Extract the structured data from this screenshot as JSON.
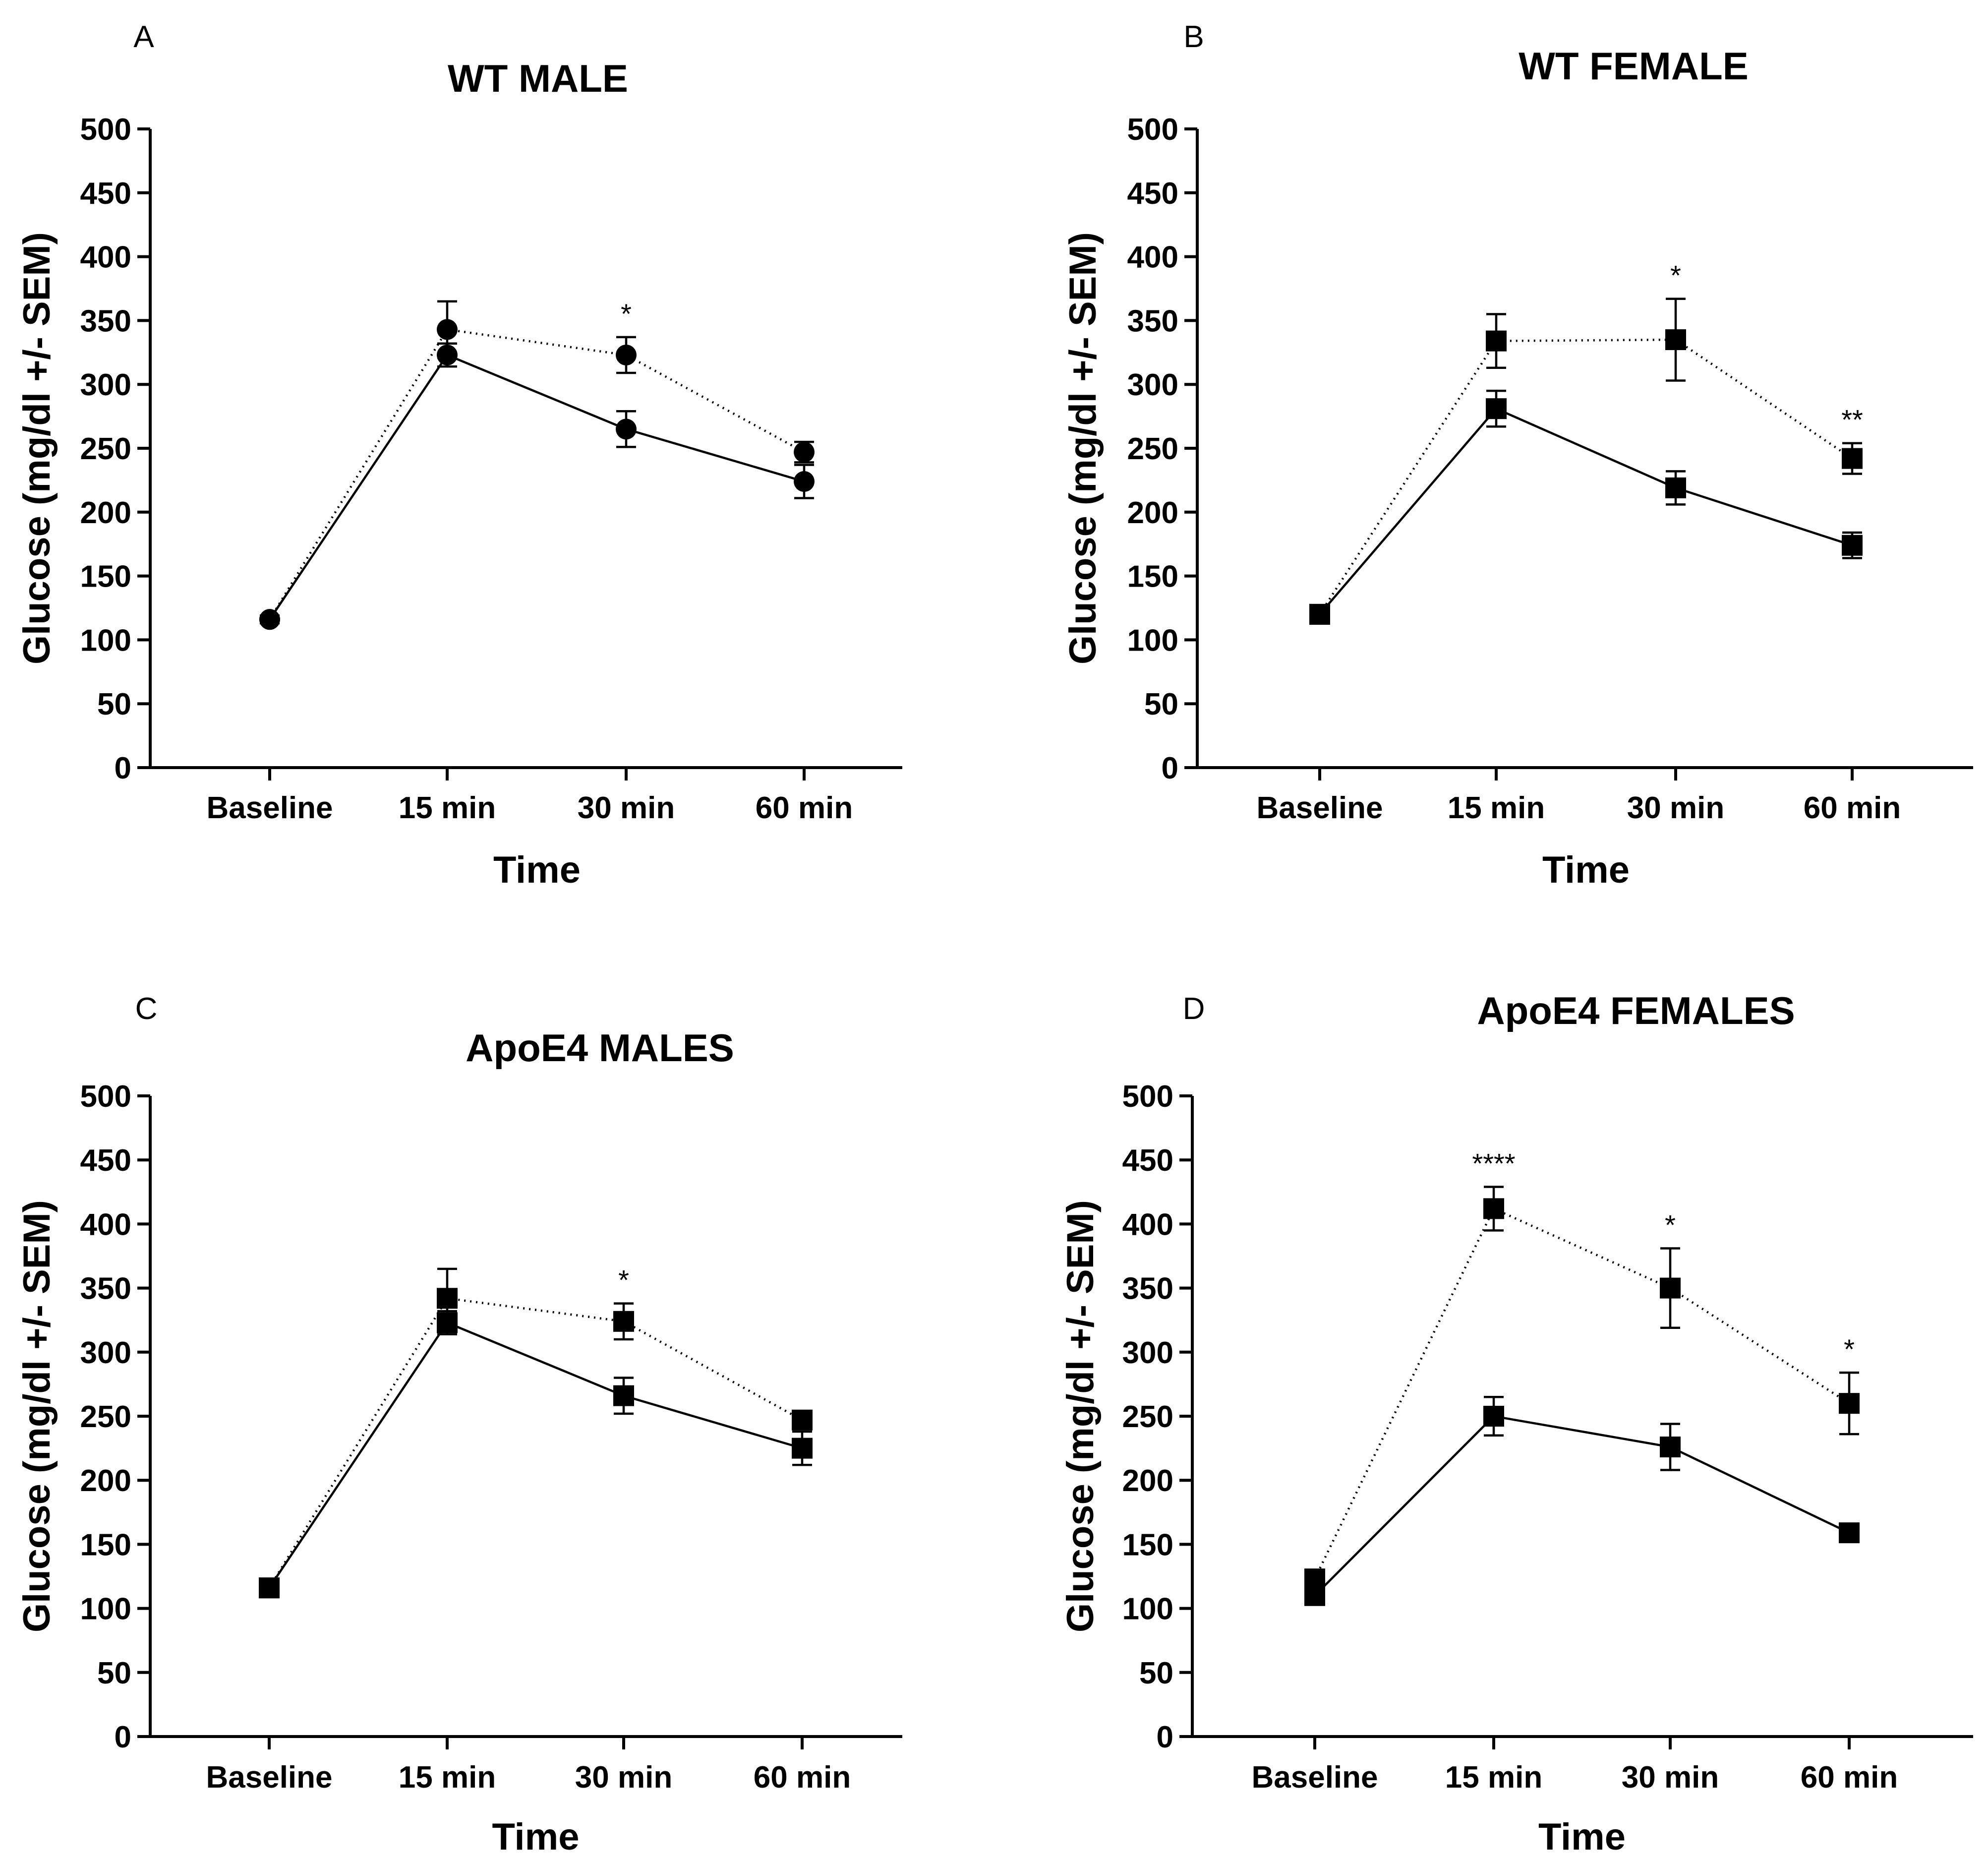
{
  "colors": {
    "ink": "#000000",
    "background": "#ffffff"
  },
  "chart_data": [
    {
      "type": "line",
      "panel": "A",
      "title": "WT MALE",
      "xlabel": "Time",
      "ylabel": "Glucose (mg/dl +/- SEM)",
      "ylim": [
        0,
        500
      ],
      "yticks": [
        "0",
        "50",
        "100",
        "150",
        "200",
        "250",
        "300",
        "350",
        "400",
        "450",
        "500"
      ],
      "categories": [
        "Baseline",
        "15 min",
        "30 min",
        "60 min"
      ],
      "marker": "circle",
      "series": [
        {
          "line": "solid",
          "values": [
            116,
            323,
            265,
            224
          ],
          "sem": [
            3,
            9,
            14,
            13
          ]
        },
        {
          "line": "dotted",
          "values": [
            116,
            343,
            323,
            247
          ],
          "sem": [
            3,
            22,
            14,
            8
          ]
        }
      ],
      "annotations": [
        {
          "category": "30 min",
          "text": "*"
        }
      ]
    },
    {
      "type": "line",
      "panel": "B",
      "title": "WT FEMALE",
      "xlabel": "Time",
      "ylabel": "Glucose (mg/dl +/- SEM)",
      "ylim": [
        0,
        500
      ],
      "yticks": [
        "0",
        "50",
        "100",
        "150",
        "200",
        "250",
        "300",
        "350",
        "400",
        "450",
        "500"
      ],
      "categories": [
        "Baseline",
        "15 min",
        "30 min",
        "60 min"
      ],
      "marker": "square",
      "series": [
        {
          "line": "solid",
          "values": [
            120,
            281,
            219,
            174
          ],
          "sem": [
            5,
            14,
            13,
            10
          ]
        },
        {
          "line": "dotted",
          "values": [
            120,
            334,
            335,
            242
          ],
          "sem": [
            5,
            21,
            32,
            12
          ]
        }
      ],
      "annotations": [
        {
          "category": "30 min",
          "text": "*"
        },
        {
          "category": "60 min",
          "text": "**"
        }
      ]
    },
    {
      "type": "line",
      "panel": "C",
      "title": "ApoE4 MALES",
      "xlabel": "Time",
      "ylabel": "Glucose (mg/dl +/- SEM)",
      "ylim": [
        0,
        500
      ],
      "yticks": [
        "0",
        "50",
        "100",
        "150",
        "200",
        "250",
        "300",
        "350",
        "400",
        "450",
        "500"
      ],
      "categories": [
        "Baseline",
        "15 min",
        "30 min",
        "60 min"
      ],
      "marker": "square",
      "series": [
        {
          "line": "solid",
          "values": [
            116,
            323,
            266,
            225
          ],
          "sem": [
            3,
            9,
            14,
            13
          ]
        },
        {
          "line": "dotted",
          "values": [
            116,
            342,
            324,
            247
          ],
          "sem": [
            3,
            23,
            14,
            7
          ]
        }
      ],
      "annotations": [
        {
          "category": "30 min",
          "text": "*"
        }
      ]
    },
    {
      "type": "line",
      "panel": "D",
      "title": "ApoE4 FEMALES",
      "xlabel": "Time",
      "ylabel": "Glucose (mg/dl +/- SEM)",
      "ylim": [
        0,
        500
      ],
      "yticks": [
        "0",
        "50",
        "100",
        "150",
        "200",
        "250",
        "300",
        "350",
        "400",
        "450",
        "500"
      ],
      "categories": [
        "Baseline",
        "15 min",
        "30 min",
        "60 min"
      ],
      "marker": "square",
      "series": [
        {
          "line": "solid",
          "values": [
            110,
            250,
            226,
            159
          ],
          "sem": [
            4,
            15,
            18,
            6
          ]
        },
        {
          "line": "dotted",
          "values": [
            123,
            412,
            350,
            260
          ],
          "sem": [
            4,
            17,
            31,
            24
          ]
        }
      ],
      "annotations": [
        {
          "category": "15 min",
          "text": "****"
        },
        {
          "category": "30 min",
          "text": "*"
        },
        {
          "category": "60 min",
          "text": "*"
        }
      ]
    }
  ]
}
